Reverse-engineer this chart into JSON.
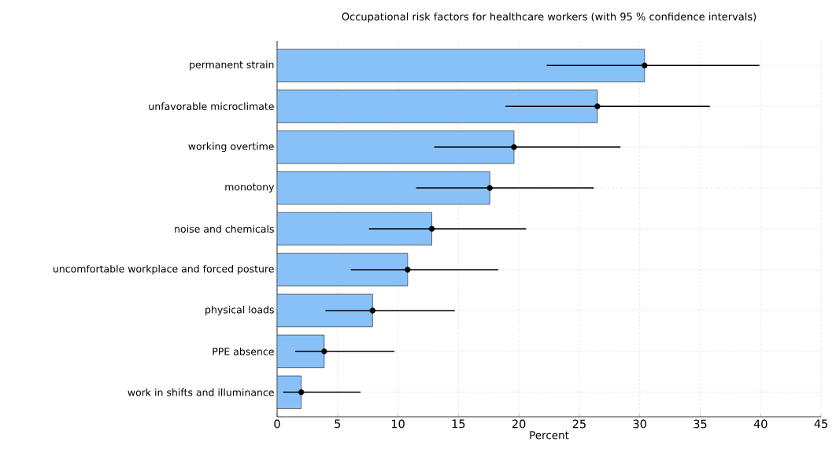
{
  "chart_data": {
    "type": "bar",
    "orientation": "horizontal",
    "title": "Occupational risk factors for healthcare workers (with 95 % confidence intervals)",
    "xlabel": "Percent",
    "categories": [
      "permanent strain",
      "unfavorable microclimate",
      "working overtime",
      "monotony",
      "noise and chemicals",
      "uncomfortable workplace and forced posture",
      "physical loads",
      "PPE absence",
      "work in shifts and illuminance"
    ],
    "series": [
      {
        "color": "#87c1f8",
        "values": [
          30.4,
          26.5,
          19.6,
          17.6,
          12.8,
          10.8,
          7.9,
          3.9,
          2.0
        ],
        "errors": [
          [
            22.3,
            39.9
          ],
          [
            18.9,
            35.8
          ],
          [
            13.0,
            28.4
          ],
          [
            11.5,
            26.2
          ],
          [
            7.6,
            20.6
          ],
          [
            6.1,
            18.3
          ],
          [
            4.0,
            14.7
          ],
          [
            1.5,
            9.7
          ],
          [
            0.5,
            6.9
          ]
        ]
      },
      {
        "type": "scatter",
        "color": "#000000",
        "values": [
          30.4,
          26.5,
          19.6,
          17.6,
          12.8,
          10.8,
          7.9,
          3.9,
          2.0
        ]
      }
    ],
    "marker": "circle",
    "xlim": [
      0,
      45
    ],
    "xticks": [
      0,
      5,
      10,
      15,
      20,
      25,
      30,
      35,
      40,
      45
    ],
    "grid": true
  }
}
